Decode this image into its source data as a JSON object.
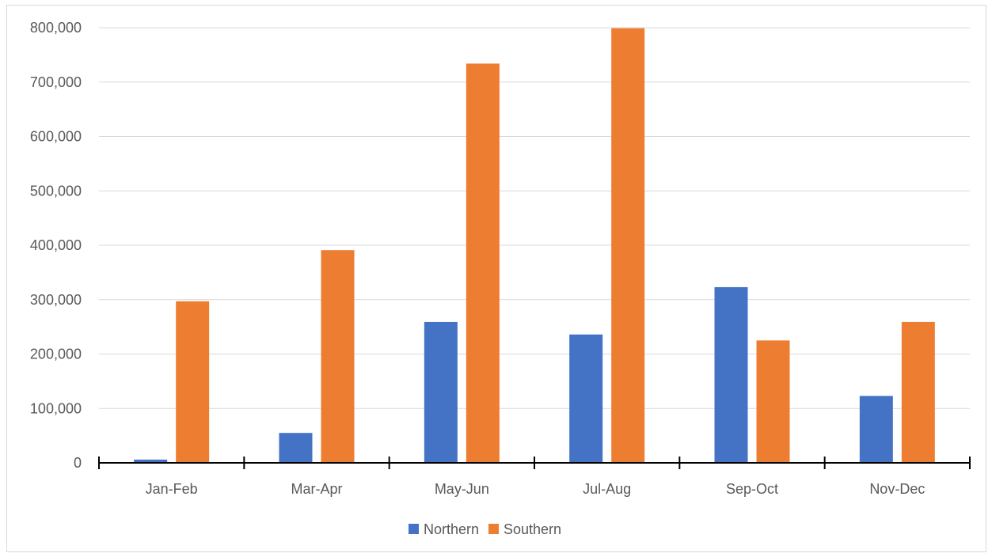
{
  "chart_data": {
    "type": "bar",
    "title": "",
    "xlabel": "",
    "ylabel": "",
    "categories": [
      "Jan-Feb",
      "Mar-Apr",
      "May-Jun",
      "Jul-Aug",
      "Sep-Oct",
      "Nov-Dec"
    ],
    "series": [
      {
        "name": "Northern",
        "color": "#4472C4",
        "values": [
          6000,
          55000,
          259000,
          236000,
          323000,
          123000
        ]
      },
      {
        "name": "Southern",
        "color": "#ED7D31",
        "values": [
          297000,
          391000,
          734000,
          799000,
          225000,
          259000
        ]
      }
    ],
    "ylim": [
      0,
      800000
    ],
    "yticks": [
      0,
      100000,
      200000,
      300000,
      400000,
      500000,
      600000,
      700000,
      800000
    ],
    "ytick_labels": [
      "0",
      "100,000",
      "200,000",
      "300,000",
      "400,000",
      "500,000",
      "600,000",
      "700,000",
      "800,000"
    ],
    "grid": true,
    "legend_position": "bottom"
  }
}
